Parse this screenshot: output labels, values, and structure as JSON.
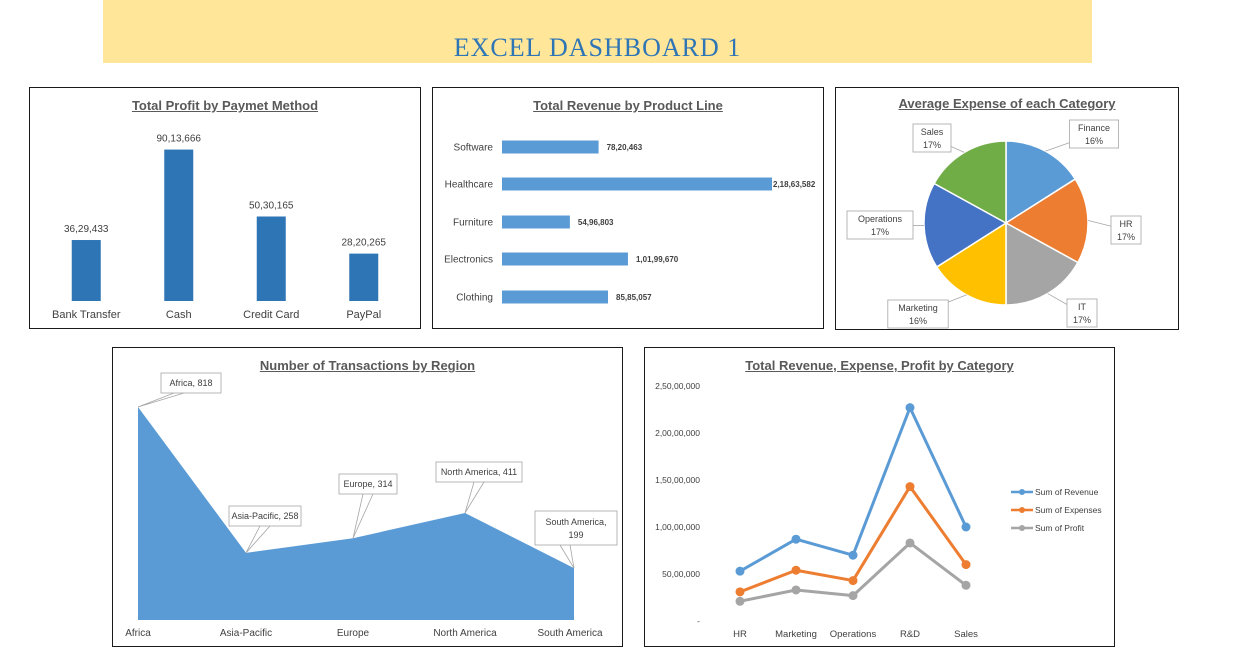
{
  "header": {
    "title": "EXCEL DASHBOARD 1"
  },
  "colors": {
    "banner": "#FFE699",
    "title": "#2E75B6",
    "bar_dark": "#2E75B6",
    "bar_light": "#5B9BD5",
    "revenue": "#5B9BD5",
    "expenses": "#ED7D31",
    "profit": "#A5A5A5"
  },
  "chart_data": [
    {
      "type": "bar",
      "title": "Total Profit by Paymet Method",
      "categories": [
        "Bank Transfer",
        "Cash",
        "Credit Card",
        "PayPal"
      ],
      "values": [
        3629433,
        9013666,
        5030165,
        2820265
      ],
      "value_labels": [
        "36,29,433",
        "90,13,666",
        "50,30,165",
        "28,20,265"
      ],
      "ylim": [
        0,
        10000000
      ]
    },
    {
      "type": "bar",
      "orientation": "horizontal",
      "title": "Total Revenue by Product Line",
      "categories": [
        "Software",
        "Healthcare",
        "Furniture",
        "Electronics",
        "Clothing"
      ],
      "values": [
        7820463,
        21863582,
        5496803,
        10199670,
        8585057
      ],
      "value_labels": [
        "78,20,463",
        "2,18,63,582",
        "54,96,803",
        "1,01,99,670",
        "85,85,057"
      ],
      "xlim": [
        0,
        22000000
      ]
    },
    {
      "type": "pie",
      "title": "Average Expense of each Category",
      "slices": [
        {
          "label": "Finance",
          "pct": "16%",
          "value": 16,
          "color": "#5B9BD5"
        },
        {
          "label": "HR",
          "pct": "17%",
          "value": 17,
          "color": "#ED7D31"
        },
        {
          "label": "IT",
          "pct": "17%",
          "value": 17,
          "color": "#A5A5A5"
        },
        {
          "label": "Marketing",
          "pct": "16%",
          "value": 16,
          "color": "#FFC000"
        },
        {
          "label": "Operations",
          "pct": "17%",
          "value": 17,
          "color": "#4472C4"
        },
        {
          "label": "Sales",
          "pct": "17%",
          "value": 17,
          "color": "#70AD47"
        }
      ]
    },
    {
      "type": "area",
      "title": "Number of Transactions by Region",
      "categories": [
        "Africa",
        "Asia-Pacific",
        "Europe",
        "North America",
        "South America"
      ],
      "values": [
        818,
        258,
        314,
        411,
        199
      ],
      "data_labels": [
        "Africa, 818",
        "Asia-Pacific, 258",
        "Europe, 314",
        "North America, 411",
        "South America, 199"
      ],
      "ylim": [
        0,
        900
      ]
    },
    {
      "type": "line",
      "title": "Total Revenue, Expense, Profit by Category",
      "categories": [
        "HR",
        "Marketing",
        "Operations",
        "R&D",
        "Sales"
      ],
      "series": [
        {
          "name": "Sum of Revenue",
          "values": [
            5300000,
            8700000,
            7000000,
            22700000,
            10000000
          ]
        },
        {
          "name": "Sum of Expenses",
          "values": [
            3100000,
            5400000,
            4300000,
            14300000,
            6000000
          ]
        },
        {
          "name": "Sum of Profit",
          "values": [
            2100000,
            3300000,
            2700000,
            8300000,
            3800000
          ]
        }
      ],
      "ytick_labels": [
        "-",
        "50,00,000",
        "1,00,00,000",
        "1,50,00,000",
        "2,00,00,000",
        "2,50,00,000"
      ],
      "ylim": [
        0,
        25000000
      ],
      "legend_position": "right"
    }
  ]
}
